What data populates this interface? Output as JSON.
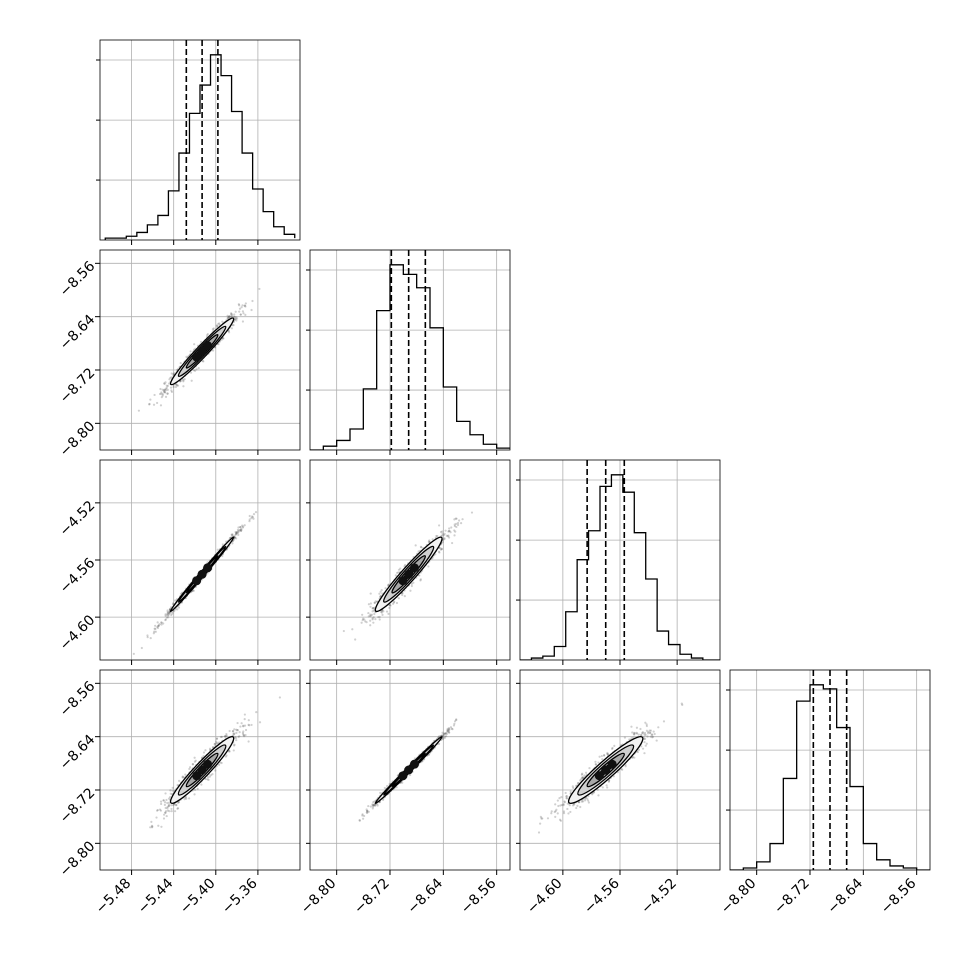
{
  "chart_data": {
    "type": "corner",
    "title": "",
    "parameters": [
      {
        "label": "",
        "range": [
          -5.51,
          -5.32
        ],
        "ticks": [
          -5.48,
          -5.44,
          -5.4,
          -5.36
        ],
        "tick_labels": [
          "−5.48",
          "−5.44",
          "−5.40",
          "−5.36"
        ],
        "quantiles": [
          -5.428,
          -5.413,
          -5.398
        ],
        "mean": -5.413,
        "sd": 0.015
      },
      {
        "label": "",
        "range": [
          -8.84,
          -8.54
        ],
        "ticks": [
          -8.8,
          -8.72,
          -8.64,
          -8.56
        ],
        "tick_labels": [
          "−8.80",
          "−8.72",
          "−8.64",
          "−8.56"
        ],
        "quantiles": [
          -8.718,
          -8.692,
          -8.667
        ],
        "mean": -8.692,
        "sd": 0.025
      },
      {
        "label": "",
        "range": [
          -4.63,
          -4.49
        ],
        "ticks": [
          -4.6,
          -4.56,
          -4.52
        ],
        "tick_labels": [
          "−4.60",
          "−4.56",
          "−4.52"
        ],
        "quantiles": [
          -4.583,
          -4.57,
          -4.557
        ],
        "mean": -4.57,
        "sd": 0.013
      },
      {
        "label": "",
        "range": [
          -8.84,
          -8.54
        ],
        "ticks": [
          -8.8,
          -8.72,
          -8.64,
          -8.56
        ],
        "tick_labels": [
          "−8.80",
          "−8.72",
          "−8.64",
          "−8.56"
        ],
        "quantiles": [
          -8.715,
          -8.69,
          -8.665
        ],
        "mean": -8.69,
        "sd": 0.025
      }
    ],
    "histograms": [
      {
        "bins": [
          -5.505,
          -5.495,
          -5.485,
          -5.475,
          -5.465,
          -5.455,
          -5.445,
          -5.435,
          -5.425,
          -5.415,
          -5.405,
          -5.395,
          -5.385,
          -5.375,
          -5.365,
          -5.355,
          -5.345,
          -5.335,
          -5.325
        ],
        "counts": [
          1,
          1,
          2,
          4,
          8,
          13,
          26,
          46,
          67,
          82,
          98,
          87,
          68,
          46,
          27,
          15,
          7,
          3,
          1
        ]
      },
      {
        "bins": [
          -8.84,
          -8.82,
          -8.8,
          -8.78,
          -8.76,
          -8.74,
          -8.72,
          -8.7,
          -8.68,
          -8.66,
          -8.64,
          -8.62,
          -8.6,
          -8.58,
          -8.56,
          -8.54
        ],
        "counts": [
          0,
          2,
          5,
          11,
          32,
          73,
          97,
          92,
          85,
          64,
          33,
          15,
          8,
          3,
          1
        ]
      },
      {
        "bins": [
          -4.63,
          -4.622,
          -4.614,
          -4.606,
          -4.598,
          -4.59,
          -4.582,
          -4.574,
          -4.566,
          -4.558,
          -4.55,
          -4.542,
          -4.534,
          -4.526,
          -4.518,
          -4.51,
          -4.502,
          -4.494,
          -4.49
        ],
        "counts": [
          0,
          1,
          2,
          7,
          25,
          52,
          67,
          90,
          96,
          87,
          66,
          42,
          15,
          8,
          3,
          1,
          0,
          0
        ]
      },
      {
        "bins": [
          -8.84,
          -8.82,
          -8.8,
          -8.78,
          -8.76,
          -8.74,
          -8.72,
          -8.7,
          -8.68,
          -8.66,
          -8.64,
          -8.62,
          -8.6,
          -8.58,
          -8.56,
          -8.54
        ],
        "counts": [
          0,
          1,
          4,
          13,
          45,
          83,
          91,
          89,
          70,
          41,
          13,
          5,
          2,
          1,
          0
        ]
      }
    ],
    "correlations": {
      "1-0": 0.97,
      "2-0": 0.995,
      "2-1": 0.96,
      "3-0": 0.95,
      "3-1": 0.995,
      "3-2": 0.94
    },
    "contour_levels_sigma": [
      0.5,
      1.0,
      1.5,
      2.0
    ],
    "colors": {
      "frame": "#000000",
      "grid": "#b0b0b0",
      "scatter": "#555555",
      "fill_light": "#f2f2f2",
      "fill_mid": "#a8a8a8",
      "fill_dark": "#555555",
      "fill_core": "#111111"
    }
  }
}
